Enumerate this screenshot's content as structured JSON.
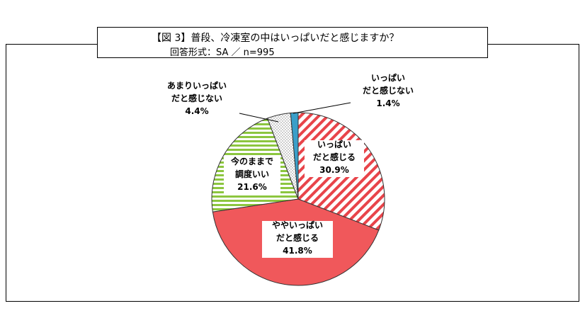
{
  "header": {
    "title": "【図 3】普段、冷凍室の中はいっぱいだと感じますか？",
    "subtitle": "回答形式：SA ／ n=995"
  },
  "chart_data": {
    "type": "pie",
    "title": "【図 3】普段、冷凍室の中はいっぱいだと感じますか？",
    "subtitle": "回答形式：SA ／ n=995",
    "start_angle_deg": 0,
    "direction": "clockwise",
    "slices": [
      {
        "label_lines": [
          "いっぱい",
          "だと感じる"
        ],
        "value": 30.9,
        "value_label": "30.9%",
        "fill": "#ffffff",
        "pattern_color": "#e8444a",
        "pattern": "diagonal-stripes"
      },
      {
        "label_lines": [
          "ややいっぱい",
          "だと感じる"
        ],
        "value": 41.8,
        "value_label": "41.8%",
        "fill": "#f0585b",
        "pattern_color": "#f0585b",
        "pattern": "solid"
      },
      {
        "label_lines": [
          "今のままで",
          "調度いい"
        ],
        "value": 21.6,
        "value_label": "21.6%",
        "fill": "#ffffff",
        "pattern_color": "#8cc63f",
        "pattern": "horizontal-stripes"
      },
      {
        "label_lines": [
          "あまりいっぱい",
          "だと感じない"
        ],
        "value": 4.4,
        "value_label": "4.4%",
        "fill": "#ffffff",
        "pattern_color": "#555555",
        "pattern": "dots"
      },
      {
        "label_lines": [
          "いっぱい",
          "だと感じない"
        ],
        "value": 1.4,
        "value_label": "1.4%",
        "fill": "#3a9fc9",
        "pattern_color": "#3a9fc9",
        "pattern": "solid"
      }
    ]
  }
}
